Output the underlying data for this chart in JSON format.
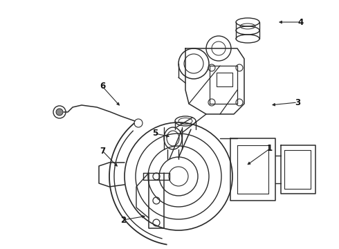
{
  "bg_color": "#ffffff",
  "line_color": "#2a2a2a",
  "label_color": "#111111",
  "figsize": [
    4.9,
    3.6
  ],
  "dpi": 100,
  "xlim": [
    0,
    490
  ],
  "ylim": [
    0,
    360
  ]
}
